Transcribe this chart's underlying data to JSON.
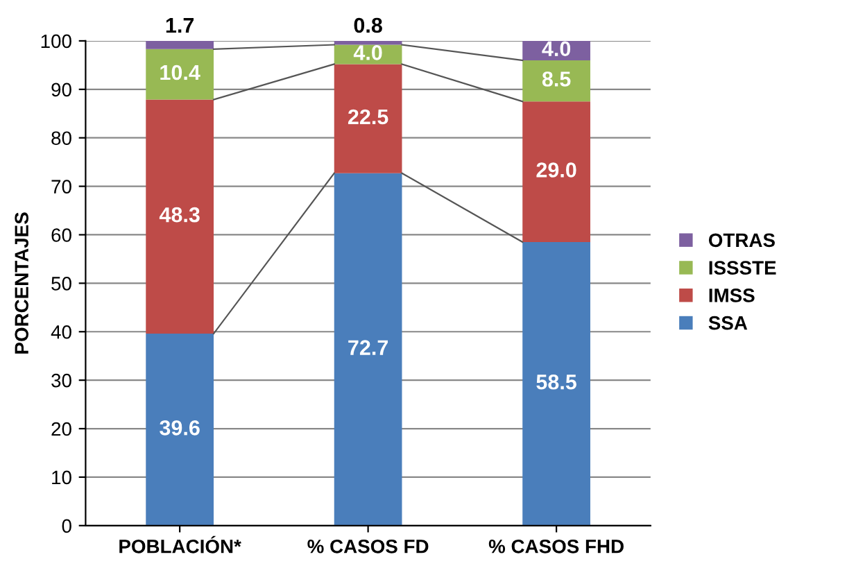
{
  "chart_data": {
    "type": "bar",
    "stacked": true,
    "ylabel": "PORCENTAJES",
    "categories": [
      "POBLACIÓN*",
      "% CASOS FD",
      "% CASOS FHD"
    ],
    "series": [
      {
        "name": "SSA",
        "color": "#4a7ebb",
        "values": [
          39.6,
          72.7,
          58.5
        ],
        "value_labels": [
          "39.6",
          "72.7",
          "58.5"
        ]
      },
      {
        "name": "IMSS",
        "color": "#be4b48",
        "values": [
          48.3,
          22.5,
          29.0
        ],
        "value_labels": [
          "48.3",
          "22.5",
          "29.0"
        ]
      },
      {
        "name": "ISSSTE",
        "color": "#98b954",
        "values": [
          10.4,
          4.0,
          8.5
        ],
        "value_labels": [
          "10.4",
          "4.0",
          "8.5"
        ]
      },
      {
        "name": "OTRAS",
        "color": "#7d60a0",
        "values": [
          1.7,
          0.8,
          4.0
        ],
        "value_labels": [
          "1.7",
          "0.8",
          "4.0"
        ]
      }
    ],
    "ylim": [
      0,
      100
    ],
    "yticks": [
      0,
      10,
      20,
      30,
      40,
      50,
      60,
      70,
      80,
      90,
      100
    ],
    "grid": "y",
    "legend": "right"
  }
}
